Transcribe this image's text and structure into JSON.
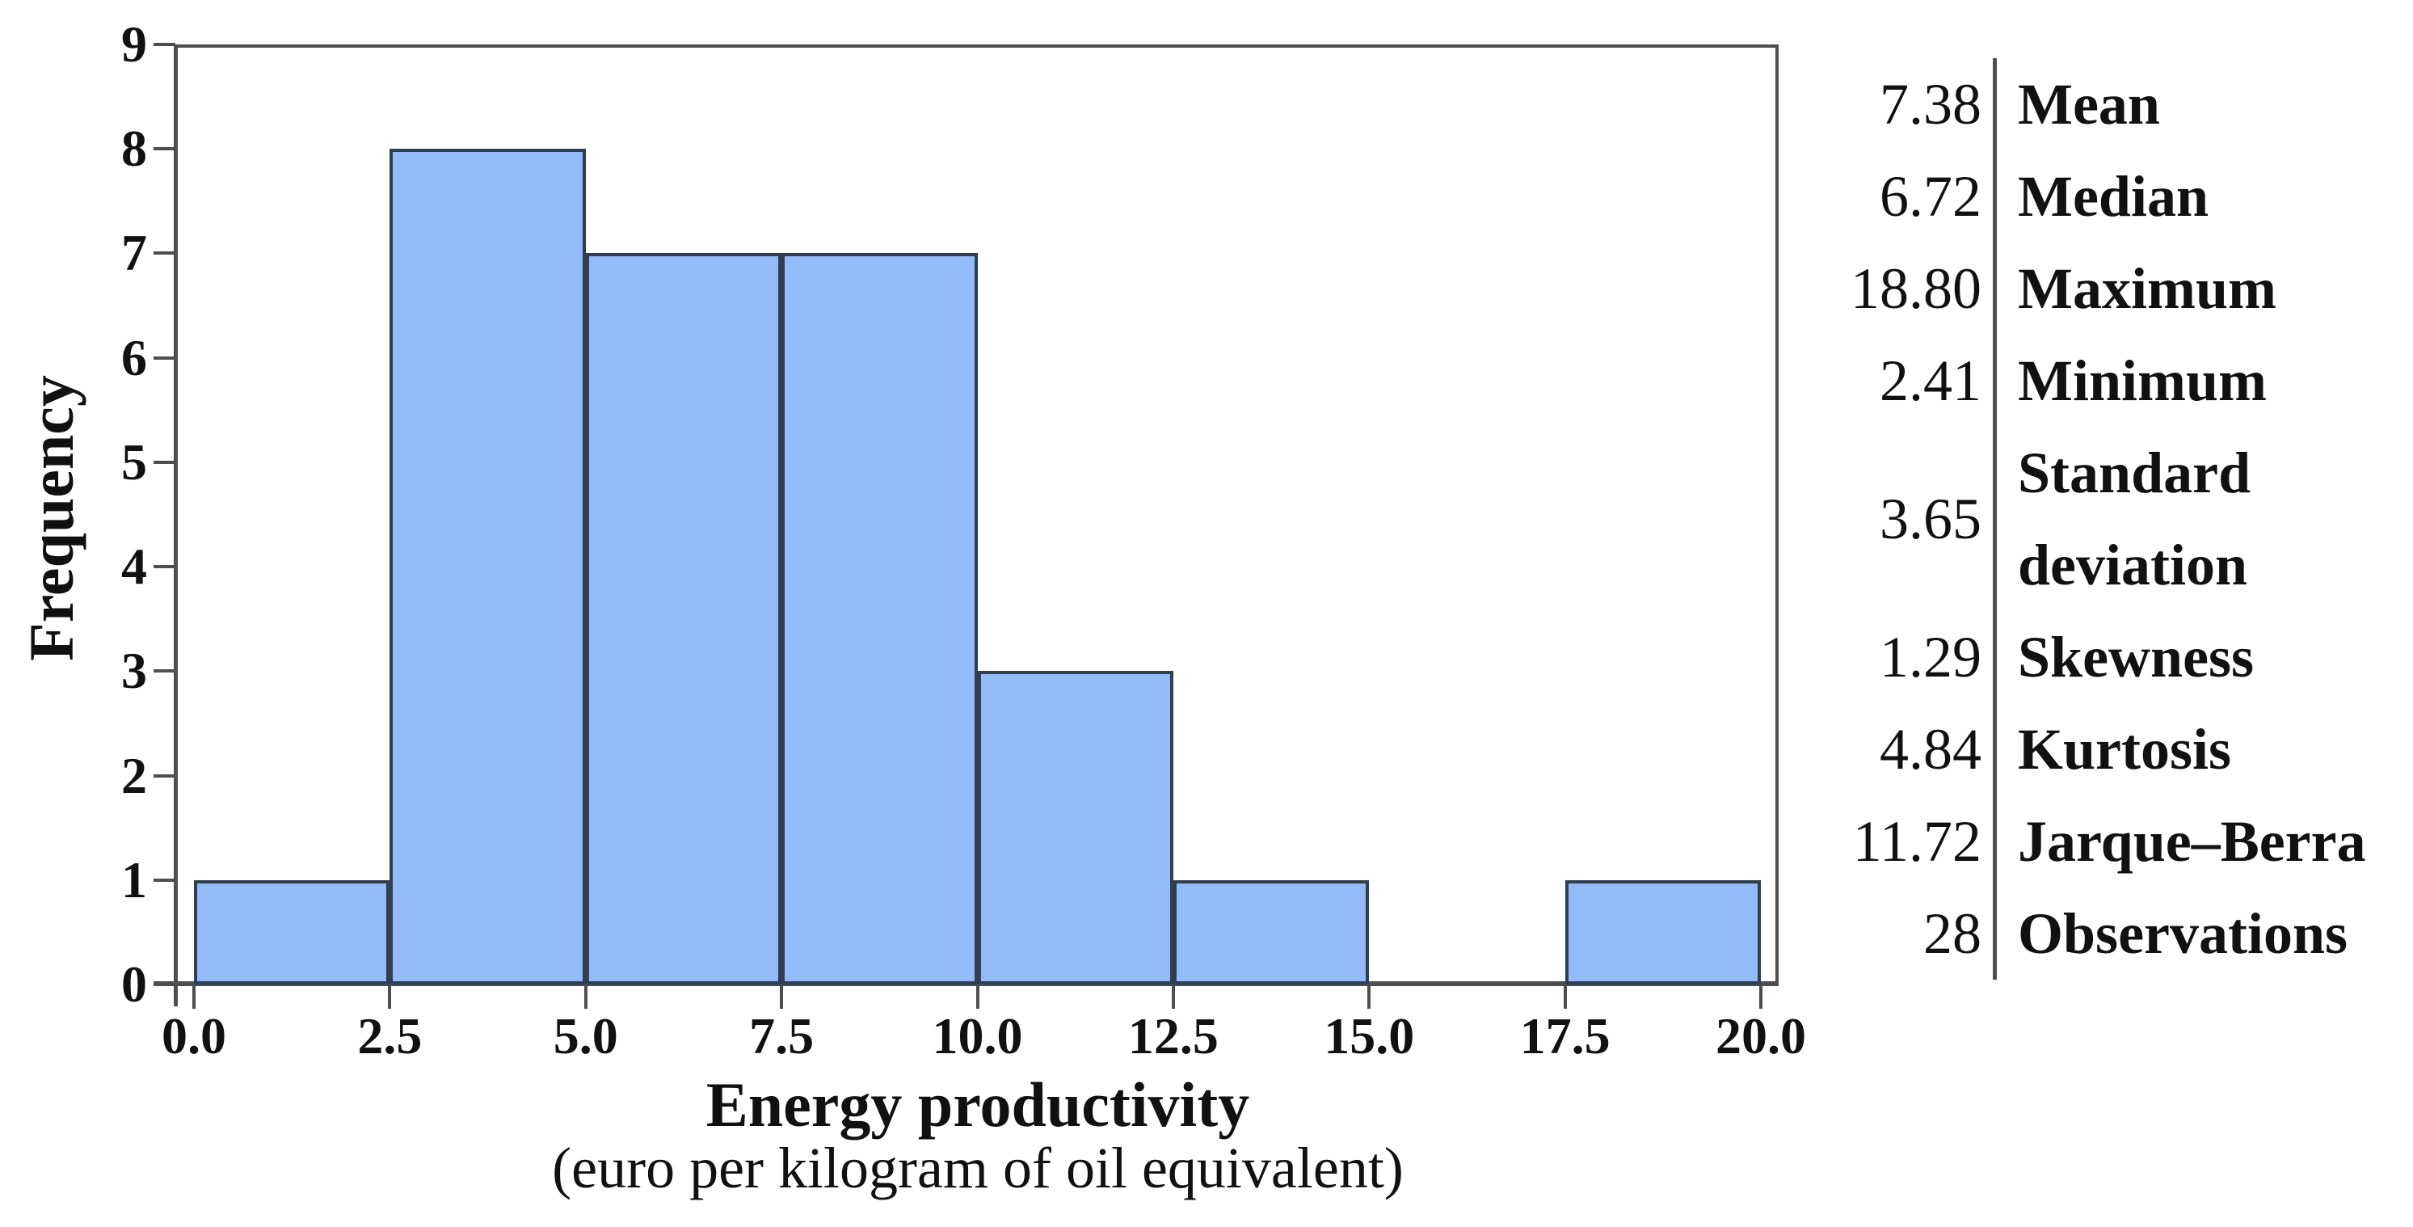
{
  "chart_data": {
    "type": "bar",
    "subtype": "histogram",
    "xlabel": "Energy productivity",
    "xlabel_subtitle": "(euro per kilogram of oil equivalent)",
    "ylabel": "Frequency",
    "xlim": [
      0,
      20
    ],
    "ylim": [
      0,
      9
    ],
    "grid": false,
    "bins": [
      {
        "from": 0.0,
        "to": 2.5,
        "count": 1
      },
      {
        "from": 2.5,
        "to": 5.0,
        "count": 8
      },
      {
        "from": 5.0,
        "to": 7.5,
        "count": 7
      },
      {
        "from": 7.5,
        "to": 10.0,
        "count": 7
      },
      {
        "from": 10.0,
        "to": 12.5,
        "count": 3
      },
      {
        "from": 12.5,
        "to": 15.0,
        "count": 1
      },
      {
        "from": 15.0,
        "to": 17.5,
        "count": 0
      },
      {
        "from": 17.5,
        "to": 20.0,
        "count": 1
      }
    ],
    "x_tick_values": [
      0,
      2.5,
      5,
      7.5,
      10,
      12.5,
      15,
      17.5,
      20
    ],
    "x_tick_labels": [
      "0.0",
      "2.5",
      "5.0",
      "7.5",
      "10.0",
      "12.5",
      "15.0",
      "17.5",
      "20.0"
    ],
    "y_tick_values": [
      0,
      1,
      2,
      3,
      4,
      5,
      6,
      7,
      8,
      9
    ],
    "y_tick_labels": [
      "0",
      "1",
      "2",
      "3",
      "4",
      "5",
      "6",
      "7",
      "8",
      "9"
    ],
    "bar_fill": "#93bbf7",
    "bar_border": "#2f3e50",
    "axis_color": "#4e4e4e"
  },
  "stats_panel": {
    "rows": [
      {
        "value": "7.38",
        "label": "Mean"
      },
      {
        "value": "6.72",
        "label": "Median"
      },
      {
        "value": "18.80",
        "label": "Maximum"
      },
      {
        "value": "2.41",
        "label": "Minimum"
      },
      {
        "value": "3.65",
        "label": "Standard deviation"
      },
      {
        "value": "1.29",
        "label": "Skewness"
      },
      {
        "value": "4.84",
        "label": "Kurtosis"
      },
      {
        "value": "11.72",
        "label": "Jarque–Berra"
      },
      {
        "value": "28",
        "label": "Observations"
      }
    ]
  }
}
